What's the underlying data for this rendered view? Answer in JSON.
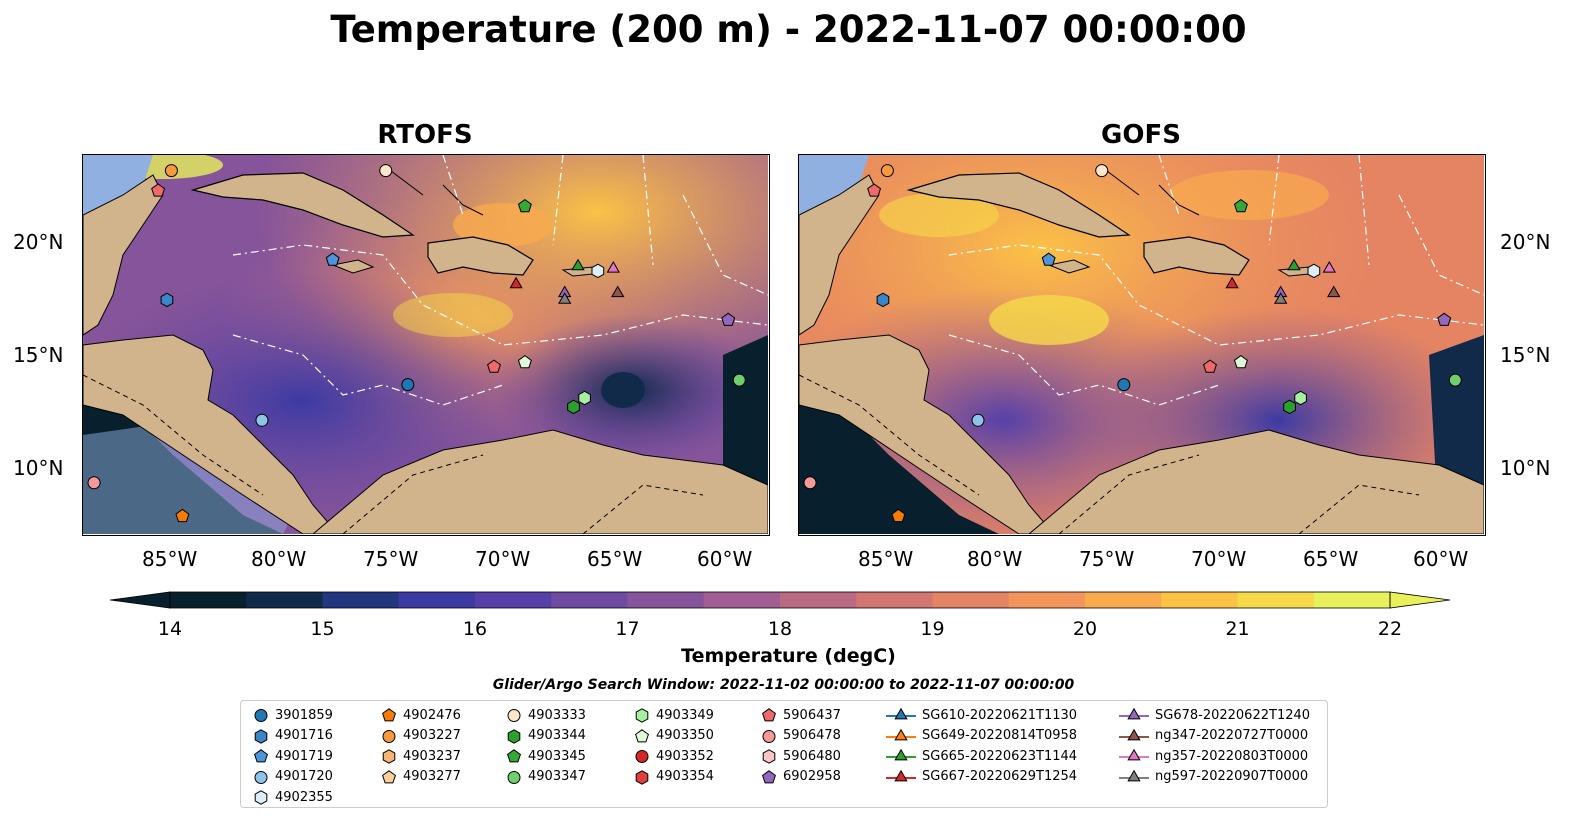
{
  "title": "Temperature (200 m) - 2022-11-07 00:00:00",
  "panels": {
    "left": {
      "title": "RTOFS"
    },
    "right": {
      "title": "GOFS"
    }
  },
  "axes": {
    "lon_ticks": [
      "85°W",
      "80°W",
      "75°W",
      "70°W",
      "65°W",
      "60°W"
    ],
    "lat_ticks": [
      "20°N",
      "15°N",
      "10°N"
    ]
  },
  "colorbar": {
    "label": "Temperature (degC)",
    "ticks": [
      "14",
      "15",
      "16",
      "17",
      "18",
      "19",
      "20",
      "21",
      "22"
    ],
    "min": 14,
    "max": 22,
    "colors": [
      "#08202e",
      "#112a4a",
      "#243580",
      "#3c3aa3",
      "#5640a8",
      "#6e4aa0",
      "#86549a",
      "#a05e92",
      "#bb6a84",
      "#d27672",
      "#e48463",
      "#f3955a",
      "#f9aa4e",
      "#fbc246",
      "#f6d948",
      "#e8f05c"
    ]
  },
  "search_window": "Glider/Argo Search Window: 2022-11-02 00:00:00 to 2022-11-07 00:00:00",
  "legend": {
    "columns": [
      [
        {
          "label": "3901859",
          "marker": "circle",
          "color": "#1f77b4"
        },
        {
          "label": "4901716",
          "marker": "hexagon",
          "color": "#3a86c8"
        },
        {
          "label": "4901719",
          "marker": "pentagon",
          "color": "#4d94d9"
        },
        {
          "label": "4901720",
          "marker": "circle",
          "color": "#8fc3e8"
        },
        {
          "label": "4902355",
          "marker": "hexagon",
          "color": "#ddeefa"
        }
      ],
      [
        {
          "label": "4902476",
          "marker": "pentagon",
          "color": "#f57c00"
        },
        {
          "label": "4903227",
          "marker": "circle",
          "color": "#f79a3e"
        },
        {
          "label": "4903237",
          "marker": "hexagon",
          "color": "#f7b473"
        },
        {
          "label": "4903277",
          "marker": "pentagon",
          "color": "#fbcf9b"
        }
      ],
      [
        {
          "label": "4903333",
          "marker": "circle",
          "color": "#fde6cc"
        },
        {
          "label": "4903344",
          "marker": "hexagon",
          "color": "#2ca02c"
        },
        {
          "label": "4903345",
          "marker": "pentagon",
          "color": "#35a835"
        },
        {
          "label": "4903347",
          "marker": "circle",
          "color": "#6fcf6f"
        }
      ],
      [
        {
          "label": "4903349",
          "marker": "hexagon",
          "color": "#a6f0a0"
        },
        {
          "label": "4903350",
          "marker": "pentagon",
          "color": "#dff8d8"
        },
        {
          "label": "4903352",
          "marker": "circle",
          "color": "#d62728"
        },
        {
          "label": "4903354",
          "marker": "hexagon",
          "color": "#e0413f"
        }
      ],
      [
        {
          "label": "5906437",
          "marker": "pentagon",
          "color": "#ee6a6a"
        },
        {
          "label": "5906478",
          "marker": "circle",
          "color": "#f49a9a"
        },
        {
          "label": "5906480",
          "marker": "hexagon",
          "color": "#f8c6c6"
        },
        {
          "label": "6902958",
          "marker": "pentagon",
          "color": "#9467bd"
        }
      ],
      [
        {
          "label": "SG610-20220621T1130",
          "marker": "triangle",
          "color": "#1f77b4"
        },
        {
          "label": "SG649-20220814T0958",
          "marker": "triangle",
          "color": "#ff7f0e"
        },
        {
          "label": "SG665-20220623T1144",
          "marker": "triangle",
          "color": "#2ca02c"
        },
        {
          "label": "SG667-20220629T1254",
          "marker": "triangle",
          "color": "#d62728"
        }
      ],
      [
        {
          "label": "SG678-20220622T1240",
          "marker": "triangle",
          "color": "#9467bd"
        },
        {
          "label": "ng347-20220727T0000",
          "marker": "triangle",
          "color": "#8c564b"
        },
        {
          "label": "ng357-20220803T0000",
          "marker": "triangle",
          "color": "#e377c2"
        },
        {
          "label": "ng597-20220907T0000",
          "marker": "triangle",
          "color": "#7f7f7f"
        }
      ]
    ]
  },
  "platforms": [
    {
      "id": "4903227",
      "marker": "circle",
      "color": "#f79a3e",
      "lon": -85,
      "lat": 23.3
    },
    {
      "id": "5906437",
      "marker": "pentagon",
      "color": "#ee6a6a",
      "lon": -85.6,
      "lat": 22.4
    },
    {
      "id": "4903333",
      "marker": "circle",
      "color": "#fde6cc",
      "lon": -75.3,
      "lat": 23.3
    },
    {
      "id": "4903345",
      "marker": "pentagon",
      "color": "#35a835",
      "lon": -69,
      "lat": 21.7
    },
    {
      "id": "4901719",
      "marker": "pentagon",
      "color": "#4d94d9",
      "lon": -77.7,
      "lat": 19.3
    },
    {
      "id": "4901716",
      "marker": "hexagon",
      "color": "#3a86c8",
      "lon": -85.2,
      "lat": 17.5
    },
    {
      "id": "SG665-20220623T1144",
      "marker": "triangle",
      "color": "#2ca02c",
      "lon": -66.6,
      "lat": 19.0
    },
    {
      "id": "4902355",
      "marker": "hexagon",
      "color": "#ddeefa",
      "lon": -65.7,
      "lat": 18.8
    },
    {
      "id": "ng357-20220803T0000",
      "marker": "triangle",
      "color": "#e377c2",
      "lon": -65.0,
      "lat": 18.9
    },
    {
      "id": "SG667-20220629T1254",
      "marker": "triangle",
      "color": "#d62728",
      "lon": -69.4,
      "lat": 18.2
    },
    {
      "id": "SG678-20220622T1240",
      "marker": "triangle",
      "color": "#9467bd",
      "lon": -67.2,
      "lat": 17.8
    },
    {
      "id": "ng597-20220907T0000",
      "marker": "triangle",
      "color": "#7f7f7f",
      "lon": -67.2,
      "lat": 17.5
    },
    {
      "id": "ng347-20220727T0000",
      "marker": "triangle",
      "color": "#8c564b",
      "lon": -64.8,
      "lat": 17.8
    },
    {
      "id": "6902958",
      "marker": "pentagon",
      "color": "#9467bd",
      "lon": -59.8,
      "lat": 16.6
    },
    {
      "id": "5906437-b",
      "marker": "pentagon",
      "color": "#ee6a6a",
      "lon": -70.4,
      "lat": 14.5
    },
    {
      "id": "4903350",
      "marker": "pentagon",
      "color": "#dff8d8",
      "lon": -69,
      "lat": 14.7
    },
    {
      "id": "3901859",
      "marker": "circle",
      "color": "#1f77b4",
      "lon": -74.3,
      "lat": 13.7
    },
    {
      "id": "4903347",
      "marker": "circle",
      "color": "#6fcf6f",
      "lon": -59.3,
      "lat": 13.9
    },
    {
      "id": "4903349",
      "marker": "hexagon",
      "color": "#a6f0a0",
      "lon": -66.3,
      "lat": 13.1
    },
    {
      "id": "4903344",
      "marker": "hexagon",
      "color": "#2ca02c",
      "lon": -66.8,
      "lat": 12.7
    },
    {
      "id": "4901720",
      "marker": "circle",
      "color": "#8fc3e8",
      "lon": -80.9,
      "lat": 12.1
    },
    {
      "id": "5906478",
      "marker": "circle",
      "color": "#f49a9a",
      "lon": -88.5,
      "lat": 9.3
    },
    {
      "id": "4902476",
      "marker": "pentagon",
      "color": "#f57c00",
      "lon": -84.5,
      "lat": 7.8
    }
  ]
}
